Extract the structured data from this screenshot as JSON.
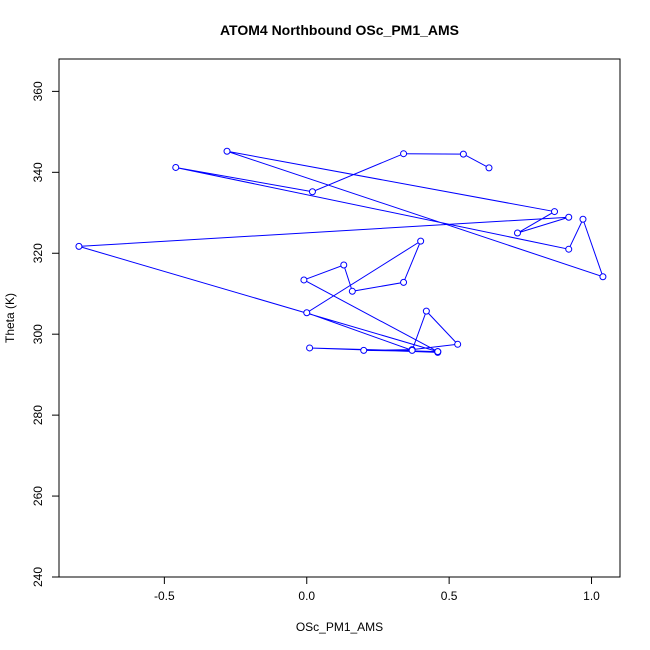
{
  "chart_data": {
    "type": "line",
    "title": "ATOM4 Northbound OSc_PM1_AMS",
    "xlabel": "OSc_PM1_AMS",
    "ylabel": "Theta (K)",
    "xlim": [
      -0.87,
      1.1
    ],
    "ylim": [
      240,
      368
    ],
    "xticks": [
      -0.5,
      0.0,
      0.5,
      1.0
    ],
    "xtick_labels": [
      "-0.5",
      "0.0",
      "0.5",
      "1.0"
    ],
    "yticks": [
      240,
      260,
      280,
      300,
      320,
      340,
      360
    ],
    "ytick_labels": [
      "240",
      "260",
      "280",
      "300",
      "320",
      "340",
      "360"
    ],
    "grid": false,
    "series": [
      {
        "color": "#0000ff",
        "marker": "open-circle",
        "x": [
          0.46,
          0.01,
          0.46,
          0.2,
          0.37,
          0.53,
          0.42,
          0.37,
          0.0,
          0.4,
          0.34,
          0.16,
          0.13,
          -0.01,
          0.46,
          -0.8,
          0.92,
          0.74,
          0.87,
          -0.28,
          1.04,
          0.97,
          0.92,
          -0.46,
          0.02,
          0.34,
          0.55,
          0.64
        ],
        "y": [
          295.5,
          296.6,
          295.7,
          296.0,
          296.2,
          297.5,
          305.7,
          296.0,
          305.3,
          323.0,
          312.8,
          310.6,
          317.1,
          313.4,
          295.7,
          321.7,
          328.9,
          325.0,
          330.3,
          345.2,
          314.2,
          328.4,
          321.0,
          341.2,
          335.2,
          344.6,
          344.5,
          341.1
        ]
      }
    ]
  }
}
